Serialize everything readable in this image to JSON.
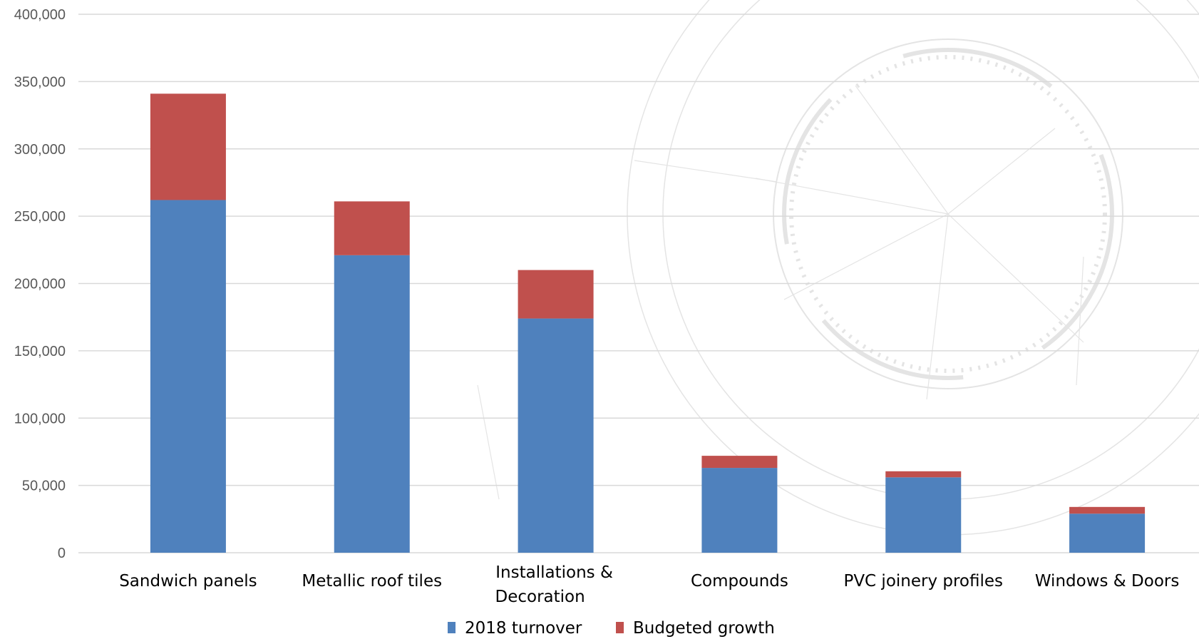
{
  "chart_data": {
    "type": "bar",
    "stacked": true,
    "categories": [
      [
        "Sandwich panels"
      ],
      [
        "Metallic roof tiles"
      ],
      [
        "Installations &",
        "Decoration"
      ],
      [
        "Compounds"
      ],
      [
        "PVC joinery profiles"
      ],
      [
        "Windows & Doors"
      ]
    ],
    "series": [
      {
        "name": "2018 turnover",
        "color": "#4f81bd",
        "values": [
          262000,
          221000,
          174000,
          63000,
          56000,
          29000
        ]
      },
      {
        "name": "Budgeted growth",
        "color": "#c0504d",
        "values": [
          79000,
          40000,
          36000,
          9000,
          4500,
          5000
        ]
      }
    ],
    "ylim": [
      0,
      400000
    ],
    "yticks": [
      "0",
      "50,000",
      "100,000",
      "150,000",
      "200,000",
      "250,000",
      "300,000",
      "350,000",
      "400,000"
    ],
    "ytick_values": [
      0,
      50000,
      100000,
      150000,
      200000,
      250000,
      300000,
      350000,
      400000
    ],
    "grid": true,
    "legend_position": "bottom"
  }
}
